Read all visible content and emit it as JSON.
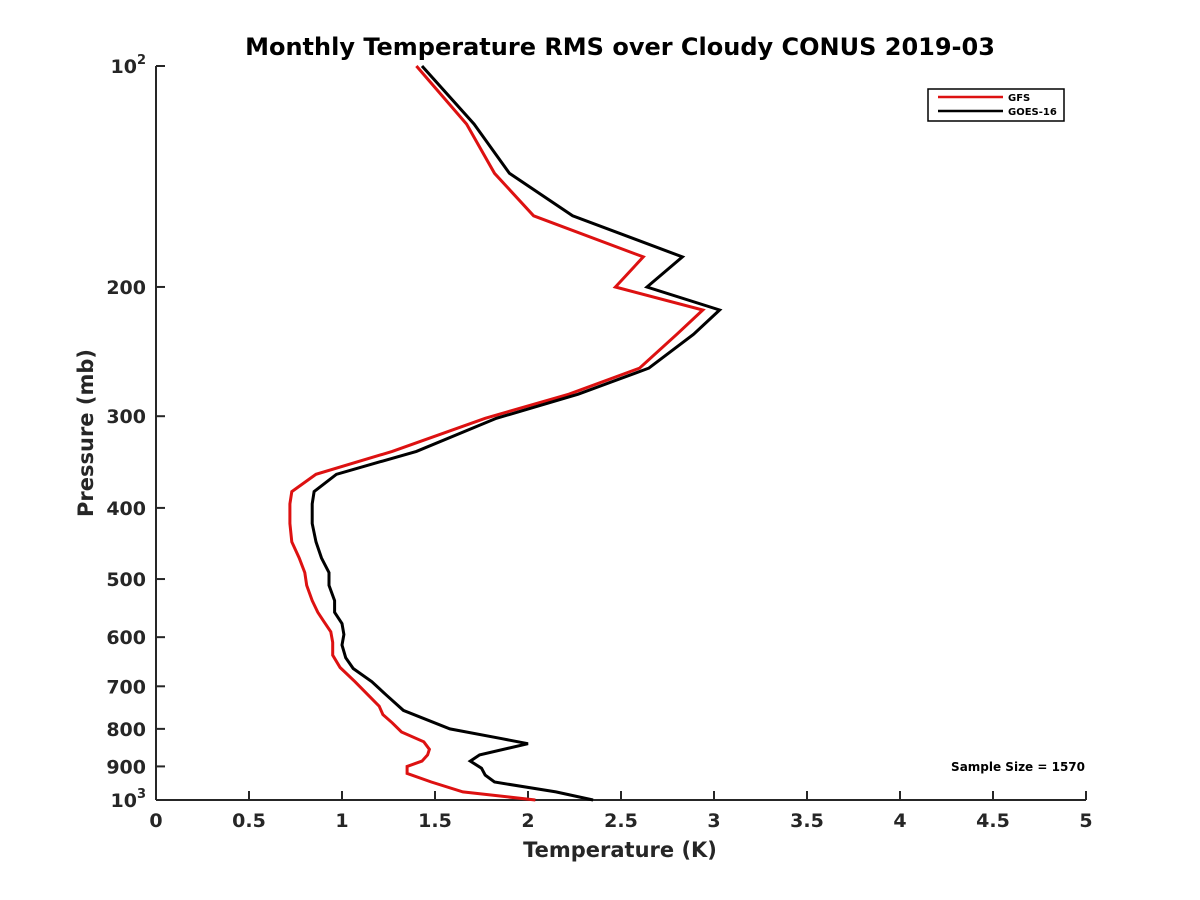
{
  "chart_data": {
    "type": "line",
    "title": "Monthly Temperature RMS over Cloudy CONUS  2019-03",
    "xlabel": "Temperature (K)",
    "ylabel": "Pressure (mb)",
    "xlim": [
      0,
      5
    ],
    "ylim": [
      100,
      1000
    ],
    "yscale": "log",
    "y_reversed": true,
    "grid": false,
    "legend_position": "top-right",
    "x_ticks": [
      0,
      0.5,
      1,
      1.5,
      2,
      2.5,
      3,
      3.5,
      4,
      4.5,
      5
    ],
    "x_tick_labels": [
      "0",
      "0.5",
      "1",
      "1.5",
      "2",
      "2.5",
      "3",
      "3.5",
      "4",
      "4.5",
      "5"
    ],
    "y_ticks": [
      {
        "value": 100,
        "base": "10",
        "exp": "2"
      },
      {
        "value": 200,
        "label": "200"
      },
      {
        "value": 300,
        "label": "300"
      },
      {
        "value": 400,
        "label": "400"
      },
      {
        "value": 500,
        "label": "500"
      },
      {
        "value": 600,
        "label": "600"
      },
      {
        "value": 700,
        "label": "700"
      },
      {
        "value": 800,
        "label": "800"
      },
      {
        "value": 900,
        "label": "900"
      },
      {
        "value": 1000,
        "base": "10",
        "exp": "3"
      }
    ],
    "series": [
      {
        "name": "GFS",
        "color": "#dd1111",
        "points": [
          [
            1.4,
            100
          ],
          [
            1.67,
            120
          ],
          [
            1.82,
            140
          ],
          [
            2.03,
            160
          ],
          [
            2.62,
            182
          ],
          [
            2.47,
            200
          ],
          [
            2.94,
            215
          ],
          [
            2.8,
            232
          ],
          [
            2.6,
            258
          ],
          [
            2.22,
            280
          ],
          [
            1.77,
            302
          ],
          [
            1.27,
            335
          ],
          [
            0.86,
            360
          ],
          [
            0.73,
            380
          ],
          [
            0.72,
            395
          ],
          [
            0.72,
            420
          ],
          [
            0.73,
            445
          ],
          [
            0.77,
            468
          ],
          [
            0.8,
            490
          ],
          [
            0.81,
            510
          ],
          [
            0.84,
            535
          ],
          [
            0.87,
            555
          ],
          [
            0.9,
            570
          ],
          [
            0.94,
            590
          ],
          [
            0.95,
            610
          ],
          [
            0.95,
            635
          ],
          [
            0.99,
            660
          ],
          [
            1.07,
            690
          ],
          [
            1.13,
            715
          ],
          [
            1.2,
            745
          ],
          [
            1.22,
            765
          ],
          [
            1.27,
            785
          ],
          [
            1.32,
            808
          ],
          [
            1.44,
            833
          ],
          [
            1.47,
            853
          ],
          [
            1.46,
            868
          ],
          [
            1.43,
            885
          ],
          [
            1.35,
            900
          ],
          [
            1.35,
            920
          ],
          [
            1.48,
            945
          ],
          [
            1.65,
            975
          ],
          [
            2.04,
            1000
          ]
        ]
      },
      {
        "name": "GOES-16",
        "color": "#000000",
        "points": [
          [
            1.43,
            100
          ],
          [
            1.71,
            120
          ],
          [
            1.9,
            140
          ],
          [
            2.24,
            160
          ],
          [
            2.83,
            182
          ],
          [
            2.64,
            200
          ],
          [
            3.03,
            215
          ],
          [
            2.89,
            232
          ],
          [
            2.65,
            258
          ],
          [
            2.27,
            280
          ],
          [
            1.83,
            302
          ],
          [
            1.4,
            335
          ],
          [
            0.97,
            360
          ],
          [
            0.85,
            380
          ],
          [
            0.84,
            395
          ],
          [
            0.84,
            420
          ],
          [
            0.86,
            445
          ],
          [
            0.89,
            468
          ],
          [
            0.93,
            490
          ],
          [
            0.93,
            510
          ],
          [
            0.96,
            535
          ],
          [
            0.96,
            555
          ],
          [
            1.0,
            575
          ],
          [
            1.01,
            595
          ],
          [
            1.0,
            615
          ],
          [
            1.02,
            640
          ],
          [
            1.06,
            662
          ],
          [
            1.16,
            690
          ],
          [
            1.24,
            720
          ],
          [
            1.33,
            755
          ],
          [
            1.58,
            800
          ],
          [
            1.86,
            825
          ],
          [
            2.0,
            838
          ],
          [
            1.74,
            868
          ],
          [
            1.69,
            885
          ],
          [
            1.75,
            905
          ],
          [
            1.77,
            925
          ],
          [
            1.82,
            945
          ],
          [
            2.15,
            975
          ],
          [
            2.35,
            1000
          ]
        ]
      }
    ],
    "annotations": [
      {
        "text": "Sample Size = 1570"
      }
    ]
  }
}
